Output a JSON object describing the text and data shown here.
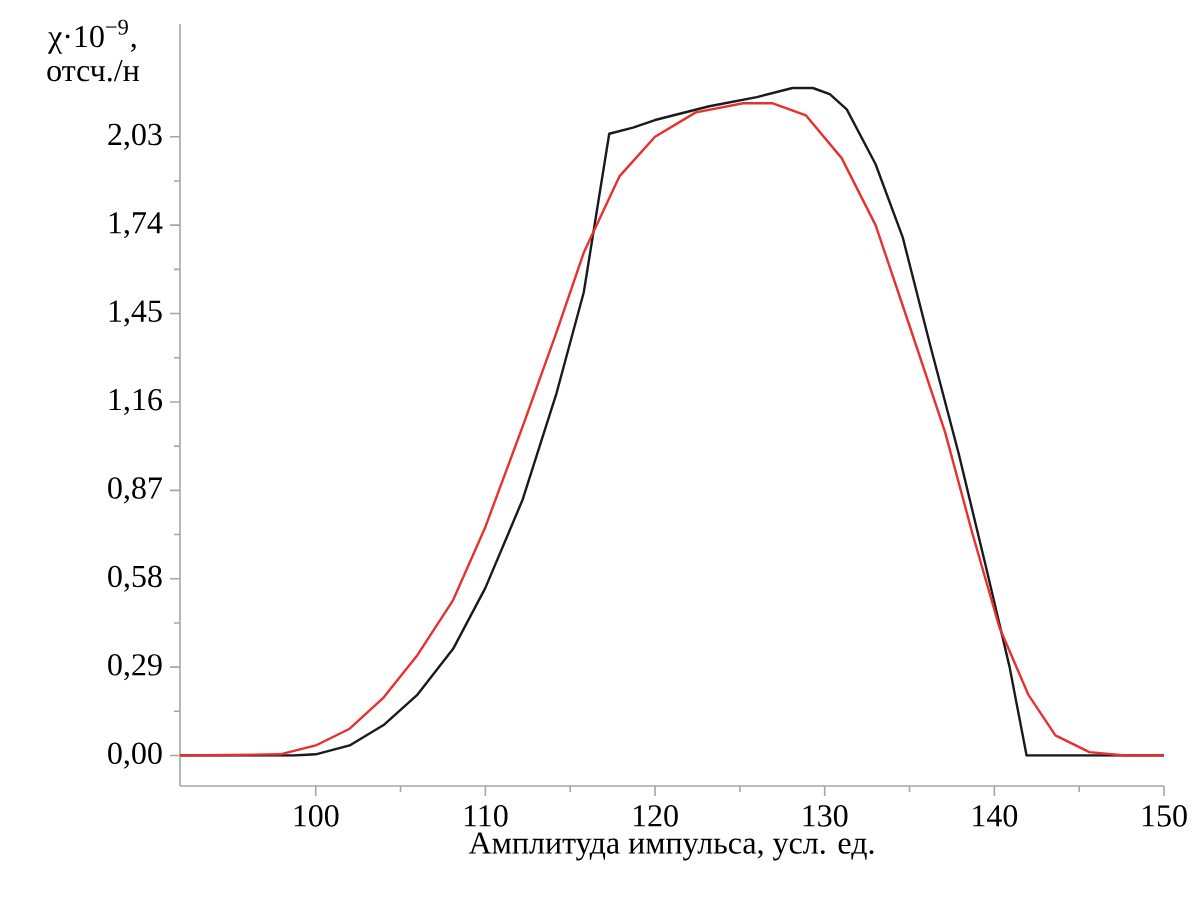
{
  "chart_data": {
    "type": "line",
    "xlabel": "Амплитуда импульса, усл. ед.",
    "ylabel": "χ·10$^{−9}$, отсч./н",
    "xlim": [
      92,
      150
    ],
    "ylim": [
      -0.1,
      2.4
    ],
    "xticks": [
      100,
      110,
      120,
      130,
      140,
      150
    ],
    "yticks": [
      {
        "value": 0,
        "label": "0,00"
      },
      {
        "value": 0.29,
        "label": "0,29"
      },
      {
        "value": 0.58,
        "label": "0,58"
      },
      {
        "value": 0.87,
        "label": "0,87"
      },
      {
        "value": 1.16,
        "label": "1,16"
      },
      {
        "value": 1.45,
        "label": "1,45"
      },
      {
        "value": 1.74,
        "label": "1,74"
      },
      {
        "value": 2.03,
        "label": "2,03"
      }
    ],
    "series": [
      {
        "color": "#1a1a1a",
        "x": [
          92,
          98.7,
          100,
          102,
          104,
          106,
          108.1,
          110,
          112.2,
          114.2,
          115.8,
          117.3,
          118.7,
          120,
          123.2,
          126,
          128.1,
          129.3,
          130.3,
          131.3,
          133,
          134.6,
          136.2,
          137.9,
          139.5,
          140.9,
          141.9,
          150
        ],
        "values": [
          0,
          0,
          0.004,
          0.033,
          0.1,
          0.2,
          0.35,
          0.55,
          0.84,
          1.19,
          1.52,
          2.04,
          2.06,
          2.085,
          2.13,
          2.16,
          2.19,
          2.19,
          2.17,
          2.12,
          1.94,
          1.7,
          1.35,
          0.99,
          0.62,
          0.29,
          0,
          0
        ]
      },
      {
        "color": "#e8302f",
        "x": [
          92,
          97.9,
          100,
          102,
          104,
          106,
          108.1,
          110,
          112.2,
          114.2,
          115.8,
          117.9,
          120,
          122.4,
          125.2,
          126.9,
          128.9,
          131,
          133,
          135,
          137.1,
          138.7,
          140.3,
          142,
          143.6,
          145.6,
          147.7,
          150
        ],
        "values": [
          0,
          0.004,
          0.033,
          0.088,
          0.19,
          0.33,
          0.51,
          0.75,
          1.08,
          1.39,
          1.65,
          1.9,
          2.03,
          2.11,
          2.14,
          2.14,
          2.1,
          1.96,
          1.74,
          1.41,
          1.06,
          0.73,
          0.42,
          0.2,
          0.066,
          0.011,
          0,
          0
        ]
      }
    ]
  }
}
